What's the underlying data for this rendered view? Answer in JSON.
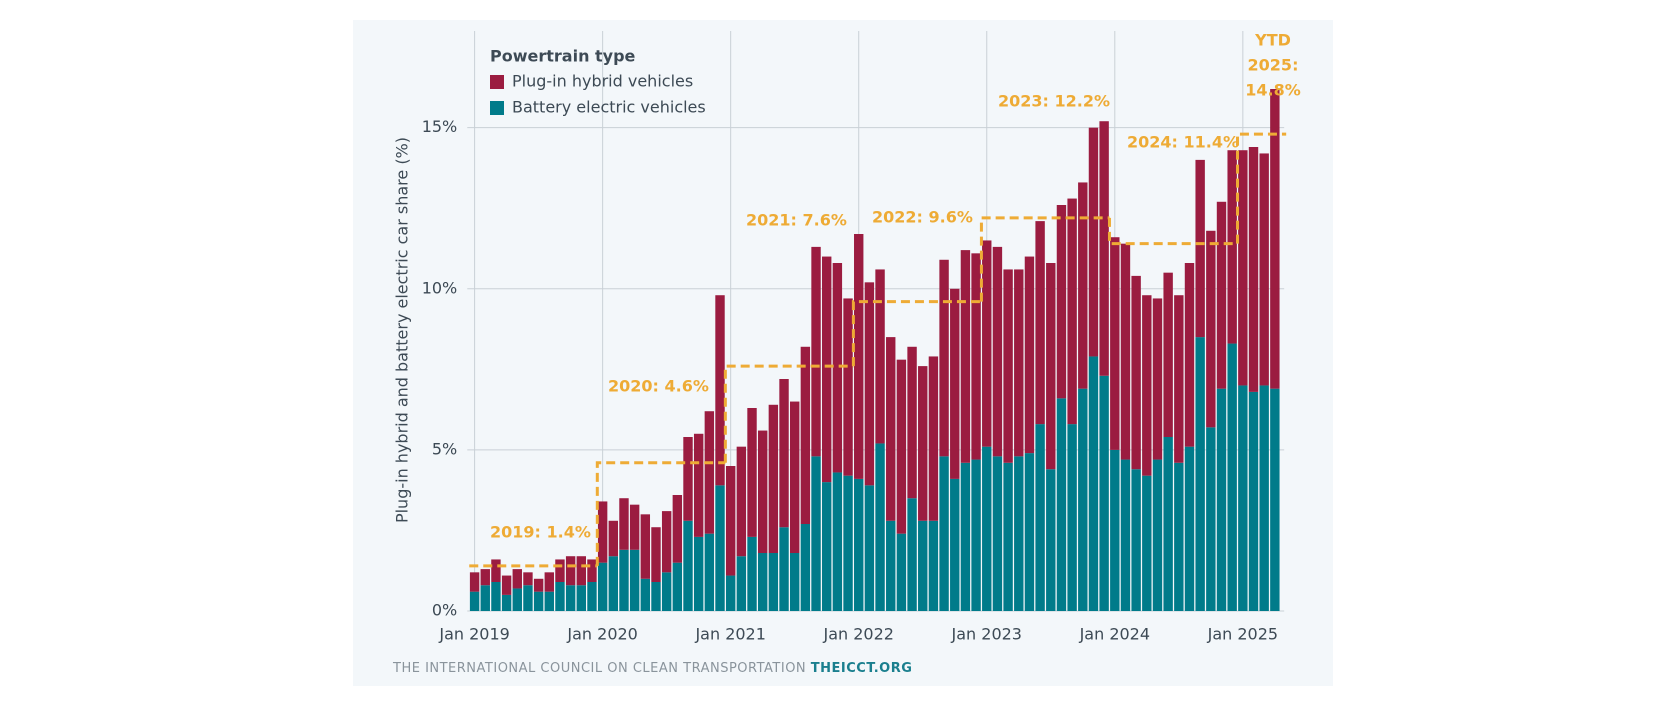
{
  "chart_data": {
    "type": "bar",
    "stacked": true,
    "y_label": "Plug-in hybrid and battery electric car share (%)",
    "legend_title": "Powertrain type",
    "source": "THE INTERNATIONAL COUNCIL ON CLEAN TRANSPORTATION",
    "source_link": "THEICCT.ORG",
    "x": [
      "2019-01",
      "2019-02",
      "2019-03",
      "2019-04",
      "2019-05",
      "2019-06",
      "2019-07",
      "2019-08",
      "2019-09",
      "2019-10",
      "2019-11",
      "2019-12",
      "2020-01",
      "2020-02",
      "2020-03",
      "2020-04",
      "2020-05",
      "2020-06",
      "2020-07",
      "2020-08",
      "2020-09",
      "2020-10",
      "2020-11",
      "2020-12",
      "2021-01",
      "2021-02",
      "2021-03",
      "2021-04",
      "2021-05",
      "2021-06",
      "2021-07",
      "2021-08",
      "2021-09",
      "2021-10",
      "2021-11",
      "2021-12",
      "2022-01",
      "2022-02",
      "2022-03",
      "2022-04",
      "2022-05",
      "2022-06",
      "2022-07",
      "2022-08",
      "2022-09",
      "2022-10",
      "2022-11",
      "2022-12",
      "2023-01",
      "2023-02",
      "2023-03",
      "2023-04",
      "2023-05",
      "2023-06",
      "2023-07",
      "2023-08",
      "2023-09",
      "2023-10",
      "2023-11",
      "2023-12",
      "2024-01",
      "2024-02",
      "2024-03",
      "2024-04",
      "2024-05",
      "2024-06",
      "2024-07",
      "2024-08",
      "2024-09",
      "2024-10",
      "2024-11",
      "2024-12",
      "2025-01",
      "2025-02",
      "2025-03",
      "2025-04"
    ],
    "xticks": [
      {
        "value": "2019-01",
        "label": "Jan 2019"
      },
      {
        "value": "2020-01",
        "label": "Jan 2020"
      },
      {
        "value": "2021-01",
        "label": "Jan 2021"
      },
      {
        "value": "2022-01",
        "label": "Jan 2022"
      },
      {
        "value": "2023-01",
        "label": "Jan 2023"
      },
      {
        "value": "2024-01",
        "label": "Jan 2024"
      },
      {
        "value": "2025-01",
        "label": "Jan 2025"
      }
    ],
    "ylim": [
      0,
      18
    ],
    "yticks": [
      {
        "value": 0,
        "label": "0%"
      },
      {
        "value": 5,
        "label": "5%"
      },
      {
        "value": 10,
        "label": "10%"
      },
      {
        "value": 15,
        "label": "15%"
      }
    ],
    "grid": true,
    "series": [
      {
        "name": "Plug-in hybrid vehicles",
        "color": "#9b1c40",
        "values": [
          0.6,
          0.5,
          0.7,
          0.6,
          0.6,
          0.4,
          0.4,
          0.6,
          0.7,
          0.9,
          0.9,
          0.7,
          1.9,
          1.1,
          1.6,
          1.4,
          2.0,
          1.7,
          1.9,
          2.1,
          2.6,
          3.2,
          3.8,
          5.9,
          3.4,
          3.4,
          4.0,
          3.8,
          4.6,
          4.6,
          4.7,
          5.5,
          6.5,
          7.0,
          6.5,
          5.5,
          7.6,
          6.3,
          5.4,
          5.7,
          5.4,
          4.7,
          4.8,
          5.1,
          6.1,
          5.9,
          6.6,
          6.4,
          6.4,
          6.5,
          6.0,
          5.8,
          6.1,
          6.3,
          6.4,
          6.0,
          7.0,
          6.4,
          7.1,
          7.9,
          6.6,
          6.7,
          6.0,
          5.6,
          5.0,
          5.1,
          5.2,
          5.7,
          5.5,
          6.1,
          5.8,
          6.0,
          7.3,
          7.6,
          7.2,
          9.3
        ]
      },
      {
        "name": "Battery electric vehicles",
        "color": "#007b8a",
        "values": [
          0.6,
          0.8,
          0.9,
          0.5,
          0.7,
          0.8,
          0.6,
          0.6,
          0.9,
          0.8,
          0.8,
          0.9,
          1.5,
          1.7,
          1.9,
          1.9,
          1.0,
          0.9,
          1.2,
          1.5,
          2.8,
          2.3,
          2.4,
          3.9,
          1.1,
          1.7,
          2.3,
          1.8,
          1.8,
          2.6,
          1.8,
          2.7,
          4.8,
          4.0,
          4.3,
          4.2,
          4.1,
          3.9,
          5.2,
          2.8,
          2.4,
          3.5,
          2.8,
          2.8,
          4.8,
          4.1,
          4.6,
          4.7,
          5.1,
          4.8,
          4.6,
          4.8,
          4.9,
          5.8,
          4.4,
          6.6,
          5.8,
          6.9,
          7.9,
          7.3,
          5.0,
          4.7,
          4.4,
          4.2,
          4.7,
          5.4,
          4.6,
          5.1,
          8.5,
          5.7,
          6.9,
          8.3,
          7.0,
          6.8,
          7.0,
          6.9
        ]
      }
    ],
    "annotation_color": "#eeab35",
    "annotations": [
      {
        "text": "2019: 1.4%",
        "value": 1.4
      },
      {
        "text": "2020: 4.6%",
        "value": 4.6
      },
      {
        "text": "2021: 7.6%",
        "value": 7.6
      },
      {
        "text": "2022: 9.6%",
        "value": 9.6
      },
      {
        "text": "2023: 12.2%",
        "value": 12.2
      },
      {
        "text": "2024: 11.4%",
        "value": 11.4
      },
      {
        "text": [
          "YTD",
          "2025:",
          "14.8%"
        ],
        "value": 14.8
      }
    ]
  }
}
